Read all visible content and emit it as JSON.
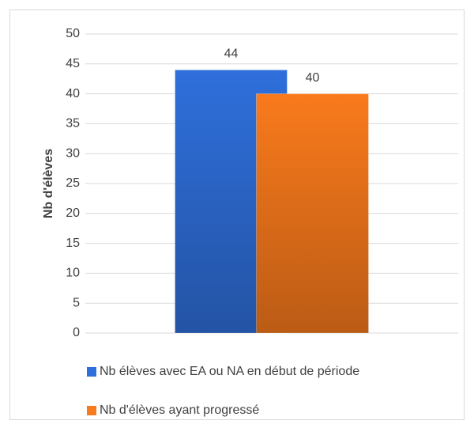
{
  "chart_data": {
    "type": "bar",
    "y_label": "Nb d'élèves",
    "categories": [
      null
    ],
    "series": [
      {
        "name": "Nb élèves avec EA ou NA en début de période",
        "color": "#2f6fdb",
        "values": [
          44
        ]
      },
      {
        "name": "Nb d'élèves ayant progressé",
        "color": "#f97a1c",
        "values": [
          40
        ]
      }
    ],
    "ylim": [
      0,
      50
    ],
    "yticks": [
      0,
      5,
      10,
      15,
      20,
      25,
      30,
      35,
      40,
      45,
      50
    ],
    "grid": true,
    "legend": "bottom",
    "data_labels": true
  }
}
